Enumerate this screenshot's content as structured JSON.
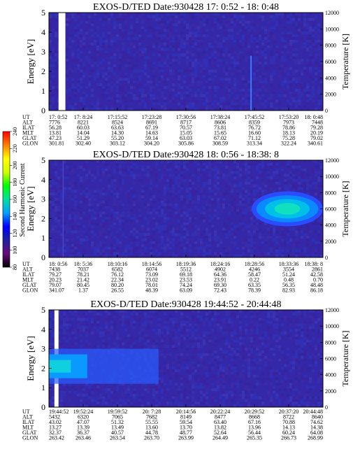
{
  "chart_data": [
    {
      "type": "heatmap",
      "title": "EXOS-D/TED",
      "date_label": "Date:930428",
      "time_range": "17: 0:52 - 18: 0:48",
      "ylabel": "Energy [eV]",
      "y2label": "Temperature [K]",
      "ylim": [
        0,
        5
      ],
      "yticks": [
        "0",
        "1",
        "2",
        "3",
        "4",
        "5"
      ],
      "y2lim": [
        0,
        12000
      ],
      "y2ticks": [
        "0",
        "2000",
        "4000",
        "6000",
        "8000",
        "10000",
        "12000"
      ],
      "row_labels": [
        "UT",
        "ALT",
        "ILAT",
        "MLT",
        "GLAT",
        "GLON"
      ],
      "columns": [
        [
          "17: 0:52",
          "7776",
          "56.28",
          "13.81",
          "47.23",
          "301.81"
        ],
        [
          "17: 8:24",
          "8221",
          "60.03",
          "14.04",
          "51.29",
          "302.40"
        ],
        [
          "17:15:52",
          "8524",
          "63.63",
          "14.30",
          "55.20",
          "303.12"
        ],
        [
          "17:23:28",
          "8691",
          "67.19",
          "14.63",
          "59.14",
          "304.20"
        ],
        [
          "17:30:56",
          "8717",
          "70.57",
          "15.05",
          "63.03",
          "305.86"
        ],
        [
          "17:38:24",
          "8606",
          "73.81",
          "15.65",
          "67.02",
          "308.59"
        ],
        [
          "17:45:52",
          "8359",
          "76.72",
          "16.60",
          "71.12",
          "313.34"
        ],
        [
          "17:53:20",
          "7973",
          "78.86",
          "18.13",
          "75.28",
          "322.24"
        ],
        [
          "18: 0:48",
          "7448",
          "79.28",
          "20.19",
          "79.02",
          "340.61"
        ]
      ],
      "features": [
        {
          "kind": "gap",
          "x_frac": [
            0.035,
            0.06
          ]
        },
        {
          "kind": "spike",
          "x_frac": 0.735,
          "e_top": 2.8
        }
      ]
    },
    {
      "type": "heatmap",
      "title": "EXOS-D/TED",
      "date_label": "Date:930428",
      "time_range": "18: 0:56 - 18:38: 8",
      "ylabel": "Energy [eV]",
      "y2label": "Temperature [K]",
      "ylim": [
        0,
        5
      ],
      "yticks": [
        "0",
        "1",
        "2",
        "3",
        "4",
        "5"
      ],
      "y2lim": [
        0,
        12000
      ],
      "y2ticks": [
        "0",
        "2000",
        "4000",
        "6000",
        "8000",
        "10000",
        "12000"
      ],
      "row_labels": [
        "UT",
        "ALT",
        "ILAT",
        "MLT",
        "GLAT",
        "GLON"
      ],
      "columns": [
        [
          "18: 0:56",
          "7438",
          "79.27",
          "20.23",
          "79.07",
          "341.07"
        ],
        [
          "18: 5:36",
          "7037",
          "78.21",
          "21.42",
          "80.45",
          "1.37"
        ],
        [
          "18:10:16",
          "6582",
          "76.12",
          "22.34",
          "80.20",
          "26.55"
        ],
        [
          "18:14:56",
          "6074",
          "73.09",
          "23.02",
          "78.01",
          "48.39"
        ],
        [
          "18:19:36",
          "5512",
          "69.18",
          "23.53",
          "74.24",
          "63.09"
        ],
        [
          "18:24:16",
          "4902",
          "64.36",
          "23.91",
          "69.30",
          "72.43"
        ],
        [
          "18:28:56",
          "4246",
          "58.47",
          "0.22",
          "63.35",
          "78.39"
        ],
        [
          "18:33:36",
          "3554",
          "51.24",
          "0.48",
          "56.35",
          "82.93"
        ],
        [
          "18:38: 8",
          "2861",
          "42.58",
          "0.70",
          "48.48",
          "86.18"
        ]
      ],
      "features": [
        {
          "kind": "line",
          "x_frac": 0.05
        },
        {
          "kind": "blob",
          "x_frac": [
            0.74,
            1.0
          ],
          "e_range": [
            1.6,
            3.4
          ]
        }
      ]
    },
    {
      "type": "heatmap",
      "title": "EXOS-D/TED",
      "date_label": "Date:930428",
      "time_range": "19:44:52 - 20:44:48",
      "ylabel": "Energy [eV]",
      "y2label": "Temperature [K]",
      "ylim": [
        0,
        5
      ],
      "yticks": [
        "0",
        "1",
        "2",
        "3",
        "4",
        "5"
      ],
      "y2lim": [
        0,
        12000
      ],
      "y2ticks": [
        "0",
        "2000",
        "4000",
        "6000",
        "8000",
        "10000",
        "12000"
      ],
      "row_labels": [
        "UT",
        "ALT",
        "ILAT",
        "MLT",
        "GLAT",
        "GLON"
      ],
      "columns": [
        [
          "19:44:52",
          "5432",
          "43.02",
          "13.27",
          "32.37",
          "263.42"
        ],
        [
          "19:52:24",
          "6320",
          "47.07",
          "13.39",
          "36.37",
          "263.46"
        ],
        [
          "19:59:52",
          "7065",
          "51.32",
          "13.49",
          "40.57",
          "263.54"
        ],
        [
          "20: 7:28",
          "7682",
          "55.55",
          "13.60",
          "44.78",
          "263.70"
        ],
        [
          "20:14:56",
          "8149",
          "59.54",
          "13.70",
          "48.77",
          "263.99"
        ],
        [
          "20:22:24",
          "8477",
          "63.40",
          "13.82",
          "52.64",
          "264.49"
        ],
        [
          "20:29:52",
          "8668",
          "67.16",
          "13.96",
          "56.44",
          "265.35"
        ],
        [
          "20:37:20",
          "8722",
          "70.88",
          "14.13",
          "60.24",
          "266.73"
        ],
        [
          "20:44:48",
          "8640",
          "74.62",
          "14.38",
          "64.08",
          "268.99"
        ]
      ],
      "features": [
        {
          "kind": "gap",
          "x_frac": [
            0.02,
            0.035
          ]
        },
        {
          "kind": "blob",
          "x_frac": [
            0.0,
            0.4
          ],
          "e_range": [
            1.2,
            3.0
          ]
        }
      ]
    }
  ],
  "colorbar": {
    "label": "Second Harmonic Current",
    "range": [
      80,
      240
    ],
    "ticks": [
      "80",
      "100",
      "120",
      "140",
      "160",
      "180",
      "200",
      "220",
      "240"
    ],
    "colors": [
      "#000000",
      "#6a0a7a",
      "#2020a0",
      "#0000ff",
      "#00a0ff",
      "#00e0a0",
      "#00ff00",
      "#d0ff00",
      "#ffff00",
      "#ff8000",
      "#ff0000"
    ]
  }
}
